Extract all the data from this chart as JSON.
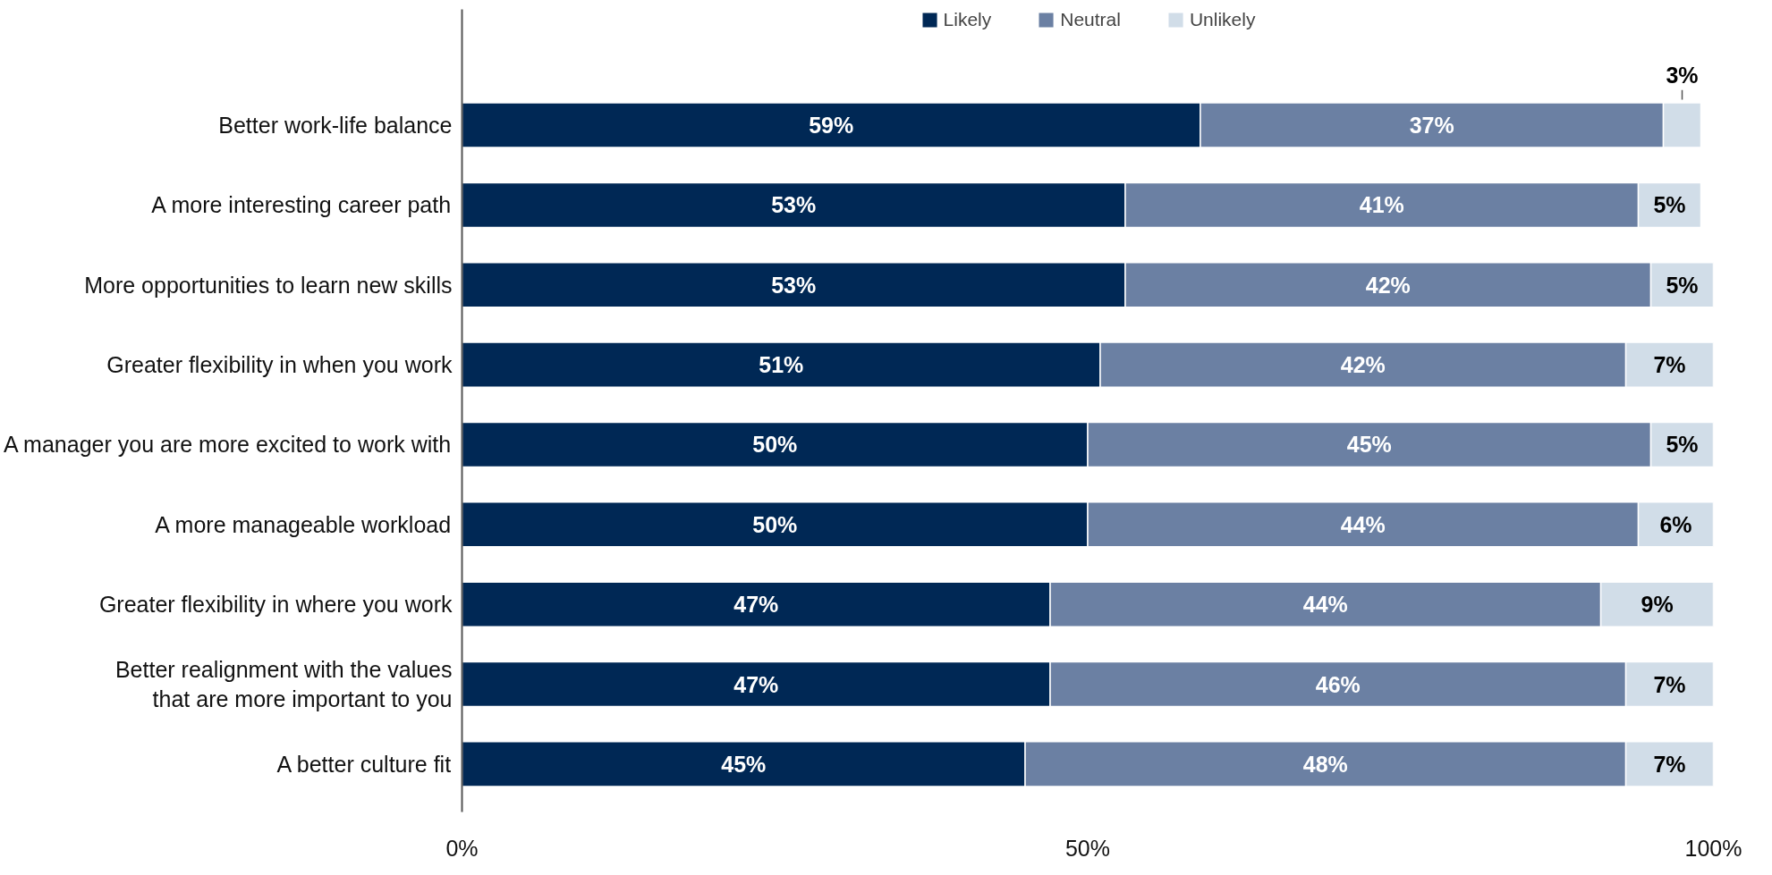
{
  "chart_data": {
    "type": "bar",
    "orientation": "horizontal",
    "stacked": true,
    "categories": [
      "Better work-life balance",
      "A more interesting career path",
      "More opportunities to learn new skills",
      "Greater flexibility in when you work",
      "A manager you are more excited to work with",
      "A more manageable workload",
      "Greater flexibility in where you work",
      "Better realignment with the values that are more important to you",
      "A better culture fit"
    ],
    "series": [
      {
        "name": "Likely",
        "color": "#002855",
        "values": [
          59,
          53,
          53,
          51,
          50,
          50,
          47,
          47,
          45
        ],
        "value_labels": [
          "59%",
          "53%",
          "53%",
          "51%",
          "50%",
          "50%",
          "47%",
          "47%",
          "45%"
        ]
      },
      {
        "name": "Neutral",
        "color": "#6b80a3",
        "values": [
          37,
          41,
          42,
          42,
          45,
          44,
          44,
          46,
          48
        ],
        "value_labels": [
          "37%",
          "41%",
          "42%",
          "42%",
          "45%",
          "44%",
          "44%",
          "46%",
          "48%"
        ]
      },
      {
        "name": "Unlikely",
        "color": "#d1dde8",
        "values": [
          3,
          5,
          5,
          7,
          5,
          6,
          9,
          7,
          7
        ],
        "value_labels": [
          "3%",
          "5%",
          "5%",
          "7%",
          "5%",
          "6%",
          "9%",
          "7%",
          "7%"
        ]
      }
    ],
    "xlim": [
      0,
      100
    ],
    "xticks": [
      {
        "value": 0,
        "label": "0%"
      },
      {
        "value": 50,
        "label": "50%"
      },
      {
        "value": 100,
        "label": "100%"
      }
    ],
    "legend": "top",
    "grid": false
  }
}
